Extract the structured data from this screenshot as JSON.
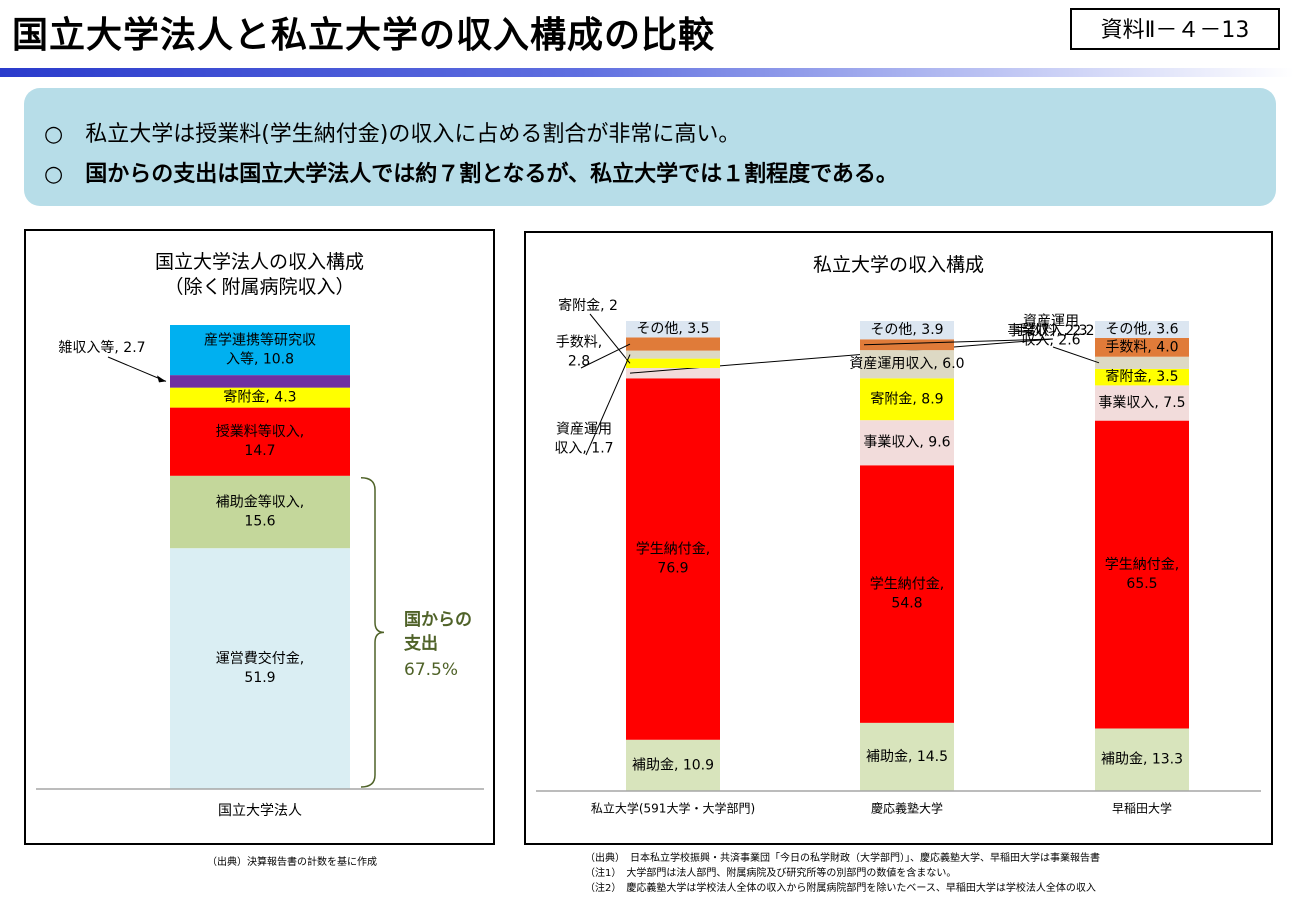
{
  "header": {
    "title": "国立大学法人と私立大学の収入構成の比較",
    "doc_number": "資料Ⅱ－４－13"
  },
  "summary": {
    "bullet1": "○　私立大学は授業料(学生納付金)の収入に占める割合が非常に高い。",
    "bullet2": "○　国からの支出は国立大学法人では約７割となるが、私立大学では１割程度である。"
  },
  "left_panel": {
    "title_line1": "国立大学法人の収入構成",
    "title_line2": "（除く附属病院収入）",
    "bracket_label_line1": "国からの",
    "bracket_label_line2": "支出",
    "bracket_label_value": "67.5%",
    "source": "（出典）決算報告書の計数を基に作成"
  },
  "right_panel": {
    "title": "私立大学の収入構成",
    "source_lines": [
      "（出典）　日本私立学校振興・共済事業団「今日の私学財政（大学部門）」、慶応義塾大学、早稲田大学は事業報告書",
      "（注1）　大学部門は法人部門、附属病院及び研究所等の別部門の数値を含まない。",
      "（注2）　慶応義塾大学は学校法人全体の収入から附属病院部門を除いたベース、早稲田大学は学校法人全体の収入"
    ]
  },
  "chart_data": [
    {
      "type": "bar",
      "stacked": true,
      "title": "国立大学法人の収入構成（除く附属病院収入）",
      "categories": [
        "国立大学法人"
      ],
      "series": [
        {
          "name": "運営費交付金",
          "values": [
            51.9
          ],
          "color": "#daeef3",
          "label": [
            "運営費交付金,",
            "51.9"
          ],
          "label_mode": "inside"
        },
        {
          "name": "補助金等収入",
          "values": [
            15.6
          ],
          "color": "#c4d79b",
          "label": [
            "補助金等収入,",
            "15.6"
          ],
          "label_mode": "inside"
        },
        {
          "name": "授業料等収入",
          "values": [
            14.7
          ],
          "color": "#ff0000",
          "label": [
            "授業料等収入,",
            "14.7"
          ],
          "label_mode": "inside"
        },
        {
          "name": "寄附金",
          "values": [
            4.3
          ],
          "color": "#ffff00",
          "label": [
            "寄附金, 4.3"
          ],
          "label_mode": "inside"
        },
        {
          "name": "雑収入等",
          "values": [
            2.7
          ],
          "color": "#7030a0",
          "label": [
            "雑収入等, 2.7"
          ],
          "label_mode": "callout"
        },
        {
          "name": "産学連携等研究収入等",
          "values": [
            10.8
          ],
          "color": "#00b0f0",
          "label": [
            "産学連携等研究収",
            "入等, 10.8"
          ],
          "label_mode": "inside"
        }
      ],
      "annotation": {
        "text": "国からの支出 67.5%",
        "color": "#4f6228"
      }
    },
    {
      "type": "bar",
      "stacked": true,
      "title": "私立大学の収入構成",
      "categories": [
        "私立大学(591大学・大学部門)",
        "慶応義塾大学",
        "早稲田大学"
      ],
      "series": [
        {
          "name": "補助金",
          "values": [
            10.9,
            14.5,
            13.3
          ],
          "color": "#d8e4bc",
          "labels": [
            [
              "補助金, 10.9"
            ],
            [
              "補助金, 14.5"
            ],
            [
              "補助金, 13.3"
            ]
          ]
        },
        {
          "name": "学生納付金",
          "values": [
            76.9,
            54.8,
            65.5
          ],
          "color": "#ff0000",
          "labels": [
            [
              "学生納付金,",
              "76.9"
            ],
            [
              "学生納付金,",
              "54.8"
            ],
            [
              "学生納付金,",
              "65.5"
            ]
          ]
        },
        {
          "name": "事業収入",
          "values": [
            2.2,
            9.6,
            7.5
          ],
          "color": "#f2dcdb",
          "labels": [
            [
              "事業収入, 2.2"
            ],
            [
              "事業収入, 9.6"
            ],
            [
              "事業収入, 7.5"
            ]
          ]
        },
        {
          "name": "寄附金",
          "values": [
            2.0,
            8.9,
            3.5
          ],
          "color": "#ffff00",
          "labels": [
            [
              "寄附金, 2"
            ],
            [
              "寄附金, 8.9"
            ],
            [
              "寄附金, 3.5"
            ]
          ]
        },
        {
          "name": "資産運用収入",
          "values": [
            1.7,
            6.0,
            2.6
          ],
          "color": "#ddd9c4",
          "labels": [
            [
              "資産運用",
              "収入, 1.7"
            ],
            [
              "資産運用収入, 6.0"
            ],
            [
              "資産運用",
              "収入, 2.6"
            ]
          ]
        },
        {
          "name": "手数料",
          "values": [
            2.8,
            2.3,
            4.0
          ],
          "color": "#e07b39",
          "labels": [
            [
              "手数料,",
              "2.8"
            ],
            [
              "手数料, 2.3"
            ],
            [
              "手数料, 4.0"
            ]
          ]
        },
        {
          "name": "その他",
          "values": [
            3.5,
            3.9,
            3.6
          ],
          "color": "#dce6f1",
          "labels": [
            [
              "その他, 3.5"
            ],
            [
              "その他, 3.9"
            ],
            [
              "その他, 3.6"
            ]
          ]
        }
      ]
    }
  ]
}
